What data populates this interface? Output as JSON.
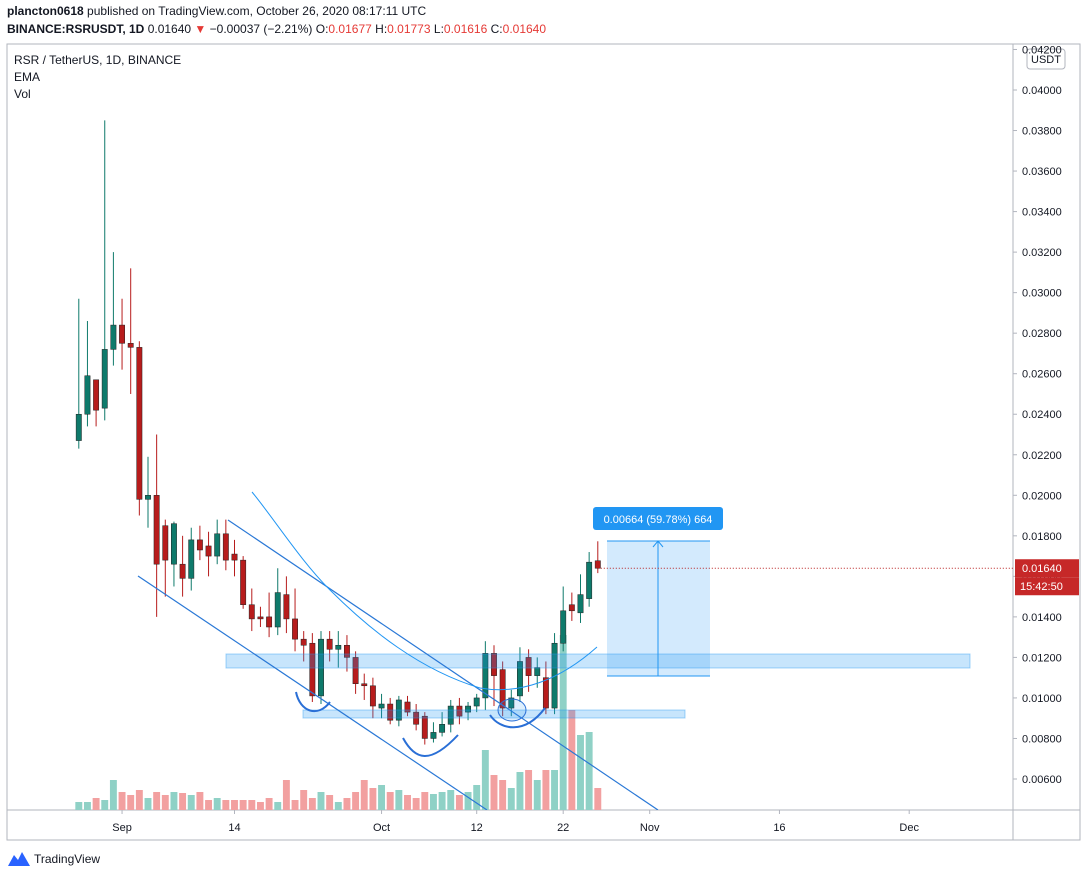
{
  "header": {
    "publisher": "plancton0618",
    "published": "published on TradingView.com, October 26, 2020 08:17:11 UTC",
    "symbol": "BINANCE:RSRUSDT, 1D",
    "last": "0.01640",
    "change": "−0.00037 (−2.21%)",
    "open_label": "O:",
    "open": "0.01677",
    "high_label": "H:",
    "high": "0.01773",
    "low_label": "L:",
    "low": "0.01616",
    "close_label": "C:",
    "close": "0.01640"
  },
  "legend": {
    "title": "RSR / TetherUS, 1D, BINANCE",
    "ema": "EMA",
    "vol": "Vol"
  },
  "axis_unit": "USDT",
  "price_tag": "0.01640",
  "countdown": "15:42:50",
  "measure_label": "0.00664 (59.78%) 664",
  "footer": "TradingView",
  "chart_data": {
    "type": "candlestick",
    "up_color": "#0e7a6b",
    "down_color": "#b71c1c",
    "up_volume_color": "#8fd1c6",
    "down_volume_color": "#f2a0a0",
    "open": [
      0.0227,
      0.024,
      0.0257,
      0.0243,
      0.0272,
      0.0284,
      0.0275,
      0.0273,
      0.0198,
      0.02,
      0.0185,
      0.0166,
      0.0166,
      0.0159,
      0.0178,
      0.0175,
      0.017,
      0.0181,
      0.0171,
      0.0168,
      0.0146,
      0.014,
      0.014,
      0.0135,
      0.0151,
      0.0139,
      0.0129,
      0.0127,
      0.0101,
      0.0129,
      0.0124,
      0.0126,
      0.012,
      0.0107,
      0.0106,
      0.0095,
      0.0097,
      0.0089,
      0.0098,
      0.0093,
      0.0091,
      0.008,
      0.0083,
      0.0087,
      0.0096,
      0.0093,
      0.0096,
      0.01,
      0.0122,
      0.0114,
      0.0095,
      0.0101,
      0.012,
      0.0111,
      0.011,
      0.0095,
      0.0127,
      0.0146,
      0.0142,
      0.0149,
      0.01677
    ],
    "high": [
      0.0297,
      0.0286,
      0.0257,
      0.0385,
      0.032,
      0.0297,
      0.0312,
      0.0276,
      0.0219,
      0.023,
      0.0188,
      0.0187,
      0.018,
      0.0184,
      0.0185,
      0.0182,
      0.0188,
      0.0188,
      0.0178,
      0.017,
      0.0154,
      0.0145,
      0.0152,
      0.0164,
      0.016,
      0.0154,
      0.0133,
      0.0132,
      0.0133,
      0.0133,
      0.0133,
      0.0131,
      0.0123,
      0.0112,
      0.011,
      0.0102,
      0.01,
      0.0101,
      0.0101,
      0.0097,
      0.0093,
      0.0088,
      0.0093,
      0.0099,
      0.01,
      0.0098,
      0.0102,
      0.0128,
      0.0126,
      0.0118,
      0.0104,
      0.0125,
      0.0124,
      0.012,
      0.0118,
      0.0132,
      0.0155,
      0.0152,
      0.0161,
      0.0172,
      0.01773
    ],
    "low": [
      0.0223,
      0.0234,
      0.0234,
      0.0237,
      0.0264,
      0.0262,
      0.025,
      0.019,
      0.0184,
      0.014,
      0.015,
      0.0155,
      0.015,
      0.0153,
      0.0168,
      0.016,
      0.0166,
      0.0163,
      0.016,
      0.0144,
      0.0133,
      0.0135,
      0.013,
      0.0131,
      0.0132,
      0.0123,
      0.0118,
      0.0098,
      0.0097,
      0.0118,
      0.0115,
      0.0113,
      0.0102,
      0.0099,
      0.009,
      0.009,
      0.0087,
      0.0086,
      0.0091,
      0.0084,
      0.0077,
      0.0078,
      0.0081,
      0.0083,
      0.0087,
      0.0089,
      0.0093,
      0.0094,
      0.0096,
      0.0091,
      0.0091,
      0.0098,
      0.0103,
      0.0105,
      0.0092,
      0.0092,
      0.0123,
      0.0138,
      0.0137,
      0.0145,
      0.01616
    ],
    "close": [
      0.024,
      0.0259,
      0.0242,
      0.0272,
      0.0284,
      0.0275,
      0.0273,
      0.0198,
      0.02,
      0.0166,
      0.0168,
      0.0186,
      0.0159,
      0.0178,
      0.0173,
      0.017,
      0.0181,
      0.0168,
      0.0168,
      0.0146,
      0.0139,
      0.0139,
      0.0135,
      0.0152,
      0.0139,
      0.0129,
      0.0126,
      0.0101,
      0.0129,
      0.0124,
      0.0126,
      0.012,
      0.0107,
      0.0106,
      0.0096,
      0.0097,
      0.0089,
      0.0099,
      0.0093,
      0.0087,
      0.008,
      0.0083,
      0.0087,
      0.0096,
      0.0091,
      0.0096,
      0.01,
      0.0122,
      0.0111,
      0.0095,
      0.01,
      0.0118,
      0.0111,
      0.0115,
      0.0095,
      0.0127,
      0.0143,
      0.0143,
      0.0151,
      0.0167,
      0.0164
    ],
    "volume": [
      8,
      8,
      12,
      10,
      30,
      18,
      15,
      20,
      12,
      18,
      15,
      18,
      17,
      15,
      18,
      10,
      12,
      10,
      10,
      10,
      10,
      8,
      12,
      8,
      30,
      10,
      20,
      12,
      18,
      15,
      8,
      12,
      18,
      30,
      22,
      25,
      18,
      20,
      15,
      12,
      18,
      16,
      18,
      20,
      15,
      18,
      25,
      60,
      35,
      30,
      22,
      38,
      40,
      30,
      40,
      40,
      175,
      100,
      75,
      78,
      22
    ],
    "xlim": [
      -8.3,
      108
    ],
    "xticks": [
      {
        "value": 5,
        "label": "Sep"
      },
      {
        "value": 18,
        "label": "14"
      },
      {
        "value": 35,
        "label": "Oct"
      },
      {
        "value": 46,
        "label": "12"
      },
      {
        "value": 56,
        "label": "22"
      },
      {
        "value": 66,
        "label": "Nov"
      },
      {
        "value": 81,
        "label": "16"
      },
      {
        "value": 96,
        "label": "Dec"
      }
    ],
    "ylim": [
      0.00447,
      0.04227
    ],
    "yticks": [
      {
        "value": 0.006,
        "label": "0.00600"
      },
      {
        "value": 0.008,
        "label": "0.00800"
      },
      {
        "value": 0.01,
        "label": "0.01000"
      },
      {
        "value": 0.012,
        "label": "0.01200"
      },
      {
        "value": 0.014,
        "label": "0.01400"
      },
      {
        "value": 0.016,
        "label": "0.01600"
      },
      {
        "value": 0.018,
        "label": "0.01800"
      },
      {
        "value": 0.02,
        "label": "0.02000"
      },
      {
        "value": 0.022,
        "label": "0.02200"
      },
      {
        "value": 0.024,
        "label": "0.02400"
      },
      {
        "value": 0.026,
        "label": "0.02600"
      },
      {
        "value": 0.028,
        "label": "0.02800"
      },
      {
        "value": 0.03,
        "label": "0.03000"
      },
      {
        "value": 0.032,
        "label": "0.03200"
      },
      {
        "value": 0.034,
        "label": "0.03400"
      },
      {
        "value": 0.036,
        "label": "0.03600"
      },
      {
        "value": 0.038,
        "label": "0.03800"
      },
      {
        "value": 0.04,
        "label": "0.04000"
      },
      {
        "value": 0.042,
        "label": "0.04200"
      }
    ]
  }
}
